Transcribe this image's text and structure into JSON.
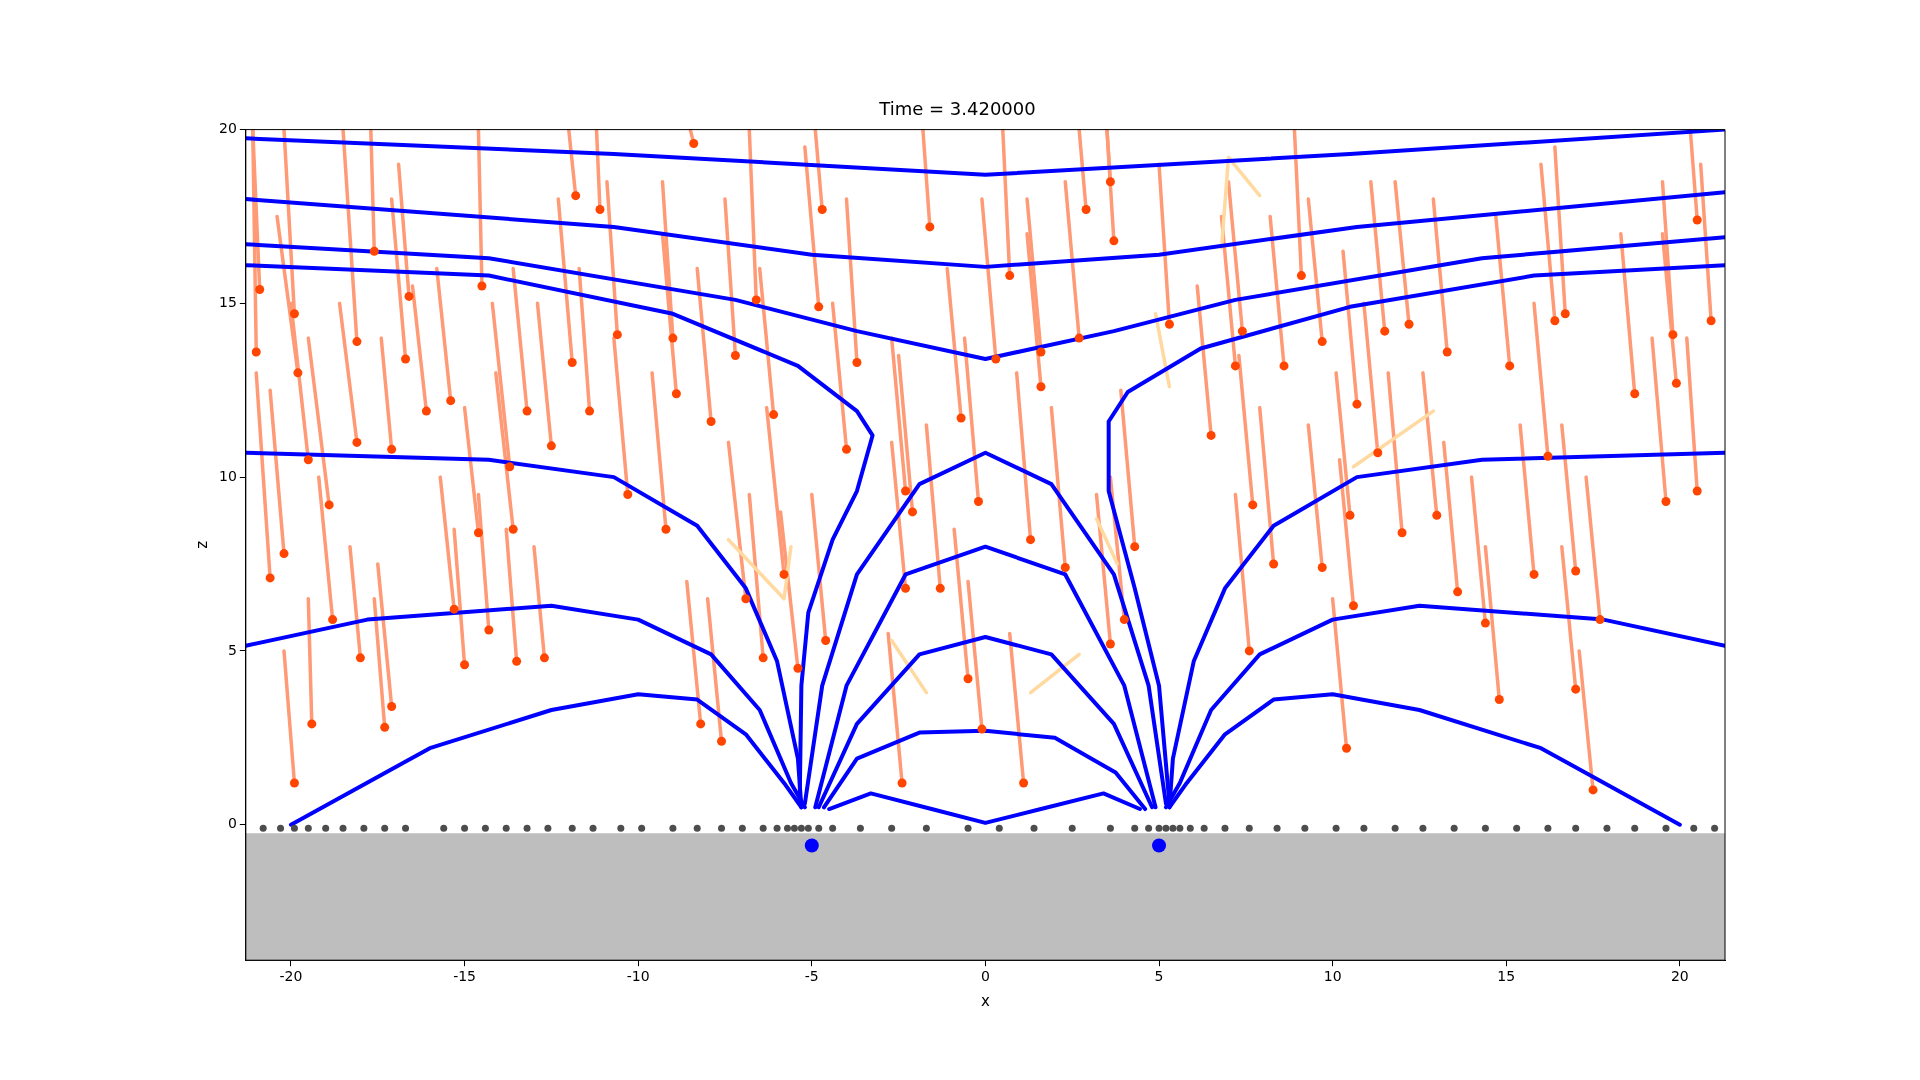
{
  "chart_data": {
    "type": "line",
    "title": "Time = 3.420000",
    "xlabel": "x",
    "ylabel": "z",
    "xlim": [
      -21.3,
      21.3
    ],
    "ylim": [
      -3.9,
      20
    ],
    "xticks": [
      -20,
      -15,
      -10,
      -5,
      0,
      5,
      10,
      15,
      20
    ],
    "yticks": [
      0,
      5,
      10,
      15,
      20
    ],
    "grid": false,
    "legend": false,
    "bands": [
      {
        "axis": "y",
        "from": -3.9,
        "to": -0.25,
        "color": "#bebebe"
      }
    ],
    "series": [
      {
        "color": "#ff9a76",
        "x": [
          -21.1,
          -21.0
        ],
        "values": [
          20,
          13.6
        ]
      },
      {
        "color": "#ff9a76",
        "x": [
          -21.1,
          -20.9
        ],
        "values": [
          20,
          15.4
        ]
      },
      {
        "color": "#ff9a76",
        "x": [
          -21.0,
          -20.6
        ],
        "values": [
          13,
          7.1
        ]
      },
      {
        "color": "#ff9a76",
        "x": [
          -20.6,
          -20.2
        ],
        "values": [
          12.5,
          7.8
        ]
      },
      {
        "color": "#ff9a76",
        "x": [
          -20.2,
          -19.9
        ],
        "values": [
          20,
          14.7
        ]
      },
      {
        "color": "#ff9a76",
        "x": [
          -20.4,
          -19.8
        ],
        "values": [
          17.5,
          13.0
        ]
      },
      {
        "color": "#ff9a76",
        "x": [
          -20.0,
          -19.5
        ],
        "values": [
          15,
          10.5
        ]
      },
      {
        "color": "#ff9a76",
        "x": [
          -19.5,
          -19.4
        ],
        "values": [
          6.5,
          2.9
        ]
      },
      {
        "color": "#ff9a76",
        "x": [
          -19.5,
          -18.9
        ],
        "values": [
          14,
          9.2
        ]
      },
      {
        "color": "#ff9a76",
        "x": [
          -19.2,
          -18.8
        ],
        "values": [
          10,
          5.9
        ]
      },
      {
        "color": "#ff9a76",
        "x": [
          -18.5,
          -18.1
        ],
        "values": [
          20,
          13.9
        ]
      },
      {
        "color": "#ff9a76",
        "x": [
          -17.7,
          -17.6
        ],
        "values": [
          20,
          16.5
        ]
      },
      {
        "color": "#ff9a76",
        "x": [
          -18.6,
          -18.1
        ],
        "values": [
          15,
          11.0
        ]
      },
      {
        "color": "#ff9a76",
        "x": [
          -18.3,
          -18.0
        ],
        "values": [
          8,
          4.8
        ]
      },
      {
        "color": "#ff9a76",
        "x": [
          -17.5,
          -17.1
        ],
        "values": [
          7.5,
          3.4
        ]
      },
      {
        "color": "#ff9a76",
        "x": [
          -17.4,
          -17.1
        ],
        "values": [
          14,
          10.8
        ]
      },
      {
        "color": "#ff9a76",
        "x": [
          -17.1,
          -16.7
        ],
        "values": [
          18,
          13.4
        ]
      },
      {
        "color": "#ff9a76",
        "x": [
          -16.9,
          -16.6
        ],
        "values": [
          19,
          15.2
        ]
      },
      {
        "color": "#ff9a76",
        "x": [
          -16.5,
          -16.1
        ],
        "values": [
          15.5,
          11.9
        ]
      },
      {
        "color": "#ff9a76",
        "x": [
          -15.8,
          -15.4
        ],
        "values": [
          16,
          12.2
        ]
      },
      {
        "color": "#ff9a76",
        "x": [
          -15.7,
          -15.3
        ],
        "values": [
          10,
          6.2
        ]
      },
      {
        "color": "#ff9a76",
        "x": [
          -15.3,
          -15.0
        ],
        "values": [
          8.5,
          4.6
        ]
      },
      {
        "color": "#ff9a76",
        "x": [
          -14.6,
          -14.5
        ],
        "values": [
          20,
          15.5
        ]
      },
      {
        "color": "#ff9a76",
        "x": [
          -15.0,
          -14.6
        ],
        "values": [
          12,
          8.4
        ]
      },
      {
        "color": "#ff9a76",
        "x": [
          -14.6,
          -14.3
        ],
        "values": [
          9.5,
          5.6
        ]
      },
      {
        "color": "#ff9a76",
        "x": [
          -14.1,
          -13.6
        ],
        "values": [
          13,
          8.5
        ]
      },
      {
        "color": "#ff9a76",
        "x": [
          -14.2,
          -13.7
        ],
        "values": [
          15,
          10.3
        ]
      },
      {
        "color": "#ff9a76",
        "x": [
          -13.8,
          -13.5
        ],
        "values": [
          8.5,
          4.7
        ]
      },
      {
        "color": "#ff9a76",
        "x": [
          -13.6,
          -13.2
        ],
        "values": [
          16,
          11.9
        ]
      },
      {
        "color": "#ff9a76",
        "x": [
          -13.0,
          -12.7
        ],
        "values": [
          8,
          4.8
        ]
      },
      {
        "color": "#ff9a76",
        "x": [
          -12.9,
          -12.5
        ],
        "values": [
          15,
          10.9
        ]
      },
      {
        "color": "#ff9a76",
        "x": [
          -12.3,
          -11.9
        ],
        "values": [
          18,
          13.3
        ]
      },
      {
        "color": "#ff9a76",
        "x": [
          -12.0,
          -11.8
        ],
        "values": [
          20,
          18.1
        ]
      },
      {
        "color": "#ff9a76",
        "x": [
          -11.7,
          -11.4
        ],
        "values": [
          16,
          11.9
        ]
      },
      {
        "color": "#ff9a76",
        "x": [
          -10.9,
          -10.6
        ],
        "values": [
          18.5,
          14.1
        ]
      },
      {
        "color": "#ff9a76",
        "x": [
          -11.2,
          -11.1
        ],
        "values": [
          20,
          17.7
        ]
      },
      {
        "color": "#ff9a76",
        "x": [
          -10.7,
          -10.3
        ],
        "values": [
          14,
          9.5
        ]
      },
      {
        "color": "#ff9a76",
        "x": [
          -9.6,
          -9.2
        ],
        "values": [
          13,
          8.5
        ]
      },
      {
        "color": "#ff9a76",
        "x": [
          -9.3,
          -9.0
        ],
        "values": [
          18.5,
          14.0
        ]
      },
      {
        "color": "#ff9a76",
        "x": [
          -9.3,
          -8.9
        ],
        "values": [
          17,
          12.4
        ]
      },
      {
        "color": "#ff9a76",
        "x": [
          -8.5,
          -8.4
        ],
        "values": [
          20,
          19.6
        ]
      },
      {
        "color": "#ff9a76",
        "x": [
          -8.3,
          -7.9
        ],
        "values": [
          16,
          11.6
        ]
      },
      {
        "color": "#ff9a76",
        "x": [
          -8.6,
          -8.2
        ],
        "values": [
          7,
          2.9
        ]
      },
      {
        "color": "#ff9a76",
        "x": [
          -7.5,
          -7.2
        ],
        "values": [
          18,
          13.5
        ]
      },
      {
        "color": "#ff9a76",
        "x": [
          -8.0,
          -7.6
        ],
        "values": [
          6.5,
          2.4
        ]
      },
      {
        "color": "#ff9a76",
        "x": [
          -7.4,
          -6.9
        ],
        "values": [
          11,
          6.5
        ]
      },
      {
        "color": "#ff9a76",
        "x": [
          -6.8,
          -6.6
        ],
        "values": [
          20,
          15.1
        ]
      },
      {
        "color": "#ff9a76",
        "x": [
          -6.5,
          -6.1
        ],
        "values": [
          16,
          11.8
        ]
      },
      {
        "color": "#ff9a76",
        "x": [
          -6.8,
          -6.4
        ],
        "values": [
          9.5,
          4.8
        ]
      },
      {
        "color": "#ff9a76",
        "x": [
          -6.3,
          -5.8
        ],
        "values": [
          12,
          7.2
        ]
      },
      {
        "color": "#ff9a76",
        "x": [
          -5.9,
          -5.4
        ],
        "values": [
          9,
          4.5
        ]
      },
      {
        "color": "#ff9a76",
        "x": [
          -5.2,
          -4.8
        ],
        "values": [
          19.5,
          14.9
        ]
      },
      {
        "color": "#ff9a76",
        "x": [
          -4.9,
          -4.7
        ],
        "values": [
          20,
          17.7
        ]
      },
      {
        "color": "#ff9a76",
        "x": [
          -5.0,
          -4.6
        ],
        "values": [
          9.5,
          5.3
        ]
      },
      {
        "color": "#ff9a76",
        "x": [
          -4.4,
          -4.0
        ],
        "values": [
          15,
          10.8
        ]
      },
      {
        "color": "#ff9a76",
        "x": [
          -4.0,
          -3.7
        ],
        "values": [
          18,
          13.3
        ]
      },
      {
        "color": "#ff9a76",
        "x": [
          -2.7,
          -2.3
        ],
        "values": [
          14,
          9.6
        ]
      },
      {
        "color": "#ff9a76",
        "x": [
          -2.7,
          -2.3
        ],
        "values": [
          11,
          6.8
        ]
      },
      {
        "color": "#ff9a76",
        "x": [
          -2.5,
          -2.1
        ],
        "values": [
          13.5,
          9.0
        ]
      },
      {
        "color": "#ff9a76",
        "x": [
          -1.8,
          -1.6
        ],
        "values": [
          20,
          17.2
        ]
      },
      {
        "color": "#ff9a76",
        "x": [
          -1.7,
          -1.3
        ],
        "values": [
          11.5,
          6.8
        ]
      },
      {
        "color": "#ff9a76",
        "x": [
          -1.1,
          -0.7
        ],
        "values": [
          16,
          11.7
        ]
      },
      {
        "color": "#ff9a76",
        "x": [
          -0.6,
          -0.2
        ],
        "values": [
          14,
          9.3
        ]
      },
      {
        "color": "#ff9a76",
        "x": [
          -0.9,
          -0.5
        ],
        "values": [
          8.5,
          4.2
        ]
      },
      {
        "color": "#ff9a76",
        "x": [
          -0.5,
          -0.1
        ],
        "values": [
          7,
          2.75
        ]
      },
      {
        "color": "#ff9a76",
        "x": [
          -0.1,
          0.3
        ],
        "values": [
          18,
          13.4
        ]
      },
      {
        "color": "#ff9a76",
        "x": [
          0.5,
          0.7
        ],
        "values": [
          20,
          15.8
        ]
      },
      {
        "color": "#ff9a76",
        "x": [
          1.2,
          1.6
        ],
        "values": [
          18,
          13.6
        ]
      },
      {
        "color": "#ff9a76",
        "x": [
          0.9,
          1.3
        ],
        "values": [
          13,
          8.2
        ]
      },
      {
        "color": "#ff9a76",
        "x": [
          1.2,
          1.6
        ],
        "values": [
          17,
          12.6
        ]
      },
      {
        "color": "#ff9a76",
        "x": [
          1.9,
          2.3
        ],
        "values": [
          12,
          7.4
        ]
      },
      {
        "color": "#ff9a76",
        "x": [
          2.3,
          2.7
        ],
        "values": [
          18.5,
          14.0
        ]
      },
      {
        "color": "#ff9a76",
        "x": [
          2.7,
          2.9
        ],
        "values": [
          20,
          17.7
        ]
      },
      {
        "color": "#ff9a76",
        "x": [
          3.2,
          3.6
        ],
        "values": [
          9.5,
          5.2
        ]
      },
      {
        "color": "#ff9a76",
        "x": [
          3.5,
          3.6
        ],
        "values": [
          20,
          18.5
        ]
      },
      {
        "color": "#ff9a76",
        "x": [
          3.5,
          3.7
        ],
        "values": [
          20,
          16.8
        ]
      },
      {
        "color": "#ff9a76",
        "x": [
          3.6,
          4.0
        ],
        "values": [
          10,
          5.9
        ]
      },
      {
        "color": "#ff9a76",
        "x": [
          3.9,
          4.3
        ],
        "values": [
          12.5,
          8.0
        ]
      },
      {
        "color": "#ff9a76",
        "x": [
          5.0,
          5.3
        ],
        "values": [
          19,
          14.4
        ]
      },
      {
        "color": "#ff9a76",
        "x": [
          6.1,
          6.5
        ],
        "values": [
          15.5,
          11.2
        ]
      },
      {
        "color": "#ff9a76",
        "x": [
          7.0,
          7.4
        ],
        "values": [
          18.5,
          14.2
        ]
      },
      {
        "color": "#ff9a76",
        "x": [
          6.8,
          7.2
        ],
        "values": [
          17.5,
          13.2
        ]
      },
      {
        "color": "#ff9a76",
        "x": [
          7.2,
          7.6
        ],
        "values": [
          9.5,
          5.0
        ]
      },
      {
        "color": "#ff9a76",
        "x": [
          7.3,
          7.7
        ],
        "values": [
          13.5,
          9.2
        ]
      },
      {
        "color": "#ff9a76",
        "x": [
          7.9,
          8.3
        ],
        "values": [
          12,
          7.5
        ]
      },
      {
        "color": "#ff9a76",
        "x": [
          8.2,
          8.6
        ],
        "values": [
          17.5,
          13.2
        ]
      },
      {
        "color": "#ff9a76",
        "x": [
          8.9,
          9.1
        ],
        "values": [
          20,
          15.8
        ]
      },
      {
        "color": "#ff9a76",
        "x": [
          9.3,
          9.7
        ],
        "values": [
          11.5,
          7.4
        ]
      },
      {
        "color": "#ff9a76",
        "x": [
          9.3,
          9.7
        ],
        "values": [
          18,
          13.9
        ]
      },
      {
        "color": "#ff9a76",
        "x": [
          10.0,
          10.4
        ],
        "values": [
          6.5,
          2.2
        ]
      },
      {
        "color": "#ff9a76",
        "x": [
          10.2,
          10.6
        ],
        "values": [
          10.5,
          6.3
        ]
      },
      {
        "color": "#ff9a76",
        "x": [
          10.1,
          10.5
        ],
        "values": [
          13,
          8.9
        ]
      },
      {
        "color": "#ff9a76",
        "x": [
          10.3,
          10.7
        ],
        "values": [
          16.5,
          12.1
        ]
      },
      {
        "color": "#ff9a76",
        "x": [
          10.9,
          11.3
        ],
        "values": [
          15,
          10.7
        ]
      },
      {
        "color": "#ff9a76",
        "x": [
          11.1,
          11.5
        ],
        "values": [
          18.5,
          14.2
        ]
      },
      {
        "color": "#ff9a76",
        "x": [
          11.6,
          12.0
        ],
        "values": [
          13,
          8.4
        ]
      },
      {
        "color": "#ff9a76",
        "x": [
          11.8,
          12.2
        ],
        "values": [
          18.5,
          14.4
        ]
      },
      {
        "color": "#ff9a76",
        "x": [
          12.6,
          13.0
        ],
        "values": [
          13,
          8.9
        ]
      },
      {
        "color": "#ff9a76",
        "x": [
          12.9,
          13.3
        ],
        "values": [
          18,
          13.6
        ]
      },
      {
        "color": "#ff9a76",
        "x": [
          13.2,
          13.6
        ],
        "values": [
          11,
          6.7
        ]
      },
      {
        "color": "#ff9a76",
        "x": [
          14.0,
          14.4
        ],
        "values": [
          10,
          5.8
        ]
      },
      {
        "color": "#ff9a76",
        "x": [
          14.4,
          14.8
        ],
        "values": [
          8,
          3.6
        ]
      },
      {
        "color": "#ff9a76",
        "x": [
          14.7,
          15.1
        ],
        "values": [
          17.5,
          13.2
        ]
      },
      {
        "color": "#ff9a76",
        "x": [
          15.4,
          15.8
        ],
        "values": [
          11.5,
          7.2
        ]
      },
      {
        "color": "#ff9a76",
        "x": [
          15.8,
          16.2
        ],
        "values": [
          15,
          10.6
        ]
      },
      {
        "color": "#ff9a76",
        "x": [
          16.0,
          16.4
        ],
        "values": [
          19,
          14.5
        ]
      },
      {
        "color": "#ff9a76",
        "x": [
          16.4,
          16.7
        ],
        "values": [
          19.5,
          14.7
        ]
      },
      {
        "color": "#ff9a76",
        "x": [
          16.6,
          17.0
        ],
        "values": [
          8,
          3.9
        ]
      },
      {
        "color": "#ff9a76",
        "x": [
          16.6,
          17.0
        ],
        "values": [
          11.5,
          7.3
        ]
      },
      {
        "color": "#ff9a76",
        "x": [
          17.3,
          17.7
        ],
        "values": [
          10,
          5.9
        ]
      },
      {
        "color": "#ff9a76",
        "x": [
          18.3,
          18.7
        ],
        "values": [
          17,
          12.4
        ]
      },
      {
        "color": "#ff9a76",
        "x": [
          19.2,
          19.6
        ],
        "values": [
          14,
          9.3
        ]
      },
      {
        "color": "#ff9a76",
        "x": [
          19.5,
          19.8
        ],
        "values": [
          18.5,
          14.1
        ]
      },
      {
        "color": "#ff9a76",
        "x": [
          19.5,
          19.9
        ],
        "values": [
          17,
          12.7
        ]
      },
      {
        "color": "#ff9a76",
        "x": [
          20.2,
          20.5
        ],
        "values": [
          14,
          9.6
        ]
      },
      {
        "color": "#ff9a76",
        "x": [
          20.6,
          20.9
        ],
        "values": [
          19,
          14.5
        ]
      },
      {
        "color": "#ff9a76",
        "x": [
          20.3,
          20.5
        ],
        "values": [
          20,
          17.4
        ]
      },
      {
        "color": "#ff9a76",
        "x": [
          17.1,
          17.5
        ],
        "values": [
          5,
          1.0
        ]
      },
      {
        "color": "#ff9a76",
        "x": [
          0.7,
          1.1
        ],
        "values": [
          5.5,
          1.2
        ]
      },
      {
        "color": "#ff9a76",
        "x": [
          -2.8,
          -2.4
        ],
        "values": [
          5.5,
          1.2
        ]
      },
      {
        "color": "#ff9a76",
        "x": [
          -20.2,
          -19.9
        ],
        "values": [
          5,
          1.2
        ]
      },
      {
        "color": "#ff9a76",
        "x": [
          -17.6,
          -17.3
        ],
        "values": [
          6.5,
          2.8
        ]
      },
      {
        "color": "#ffd9a0",
        "x": [
          -7.4,
          -5.8,
          -5.6
        ],
        "values": [
          8.2,
          6.5,
          8.0
        ]
      },
      {
        "color": "#ffd9a0",
        "x": [
          -2.7,
          -1.7
        ],
        "values": [
          5.3,
          3.8
        ]
      },
      {
        "color": "#ffd9a0",
        "x": [
          1.3,
          2.7
        ],
        "values": [
          3.8,
          4.9
        ]
      },
      {
        "color": "#ffd9a0",
        "x": [
          3.2,
          3.8
        ],
        "values": [
          8.8,
          7.5
        ]
      },
      {
        "color": "#ffd9a0",
        "x": [
          4.9,
          5.3
        ],
        "values": [
          14.7,
          12.6
        ]
      },
      {
        "color": "#ffd9a0",
        "x": [
          6.8,
          7.0,
          7.9
        ],
        "values": [
          16.6,
          19.2,
          18.1
        ]
      },
      {
        "color": "#ffd9a0",
        "x": [
          10.6,
          12.9
        ],
        "values": [
          10.3,
          11.9
        ]
      },
      {
        "color": "#0000ff",
        "x": [
          -21.3,
          -10.7,
          0,
          10.5,
          21.3
        ],
        "values": [
          19.75,
          19.3,
          18.7,
          19.3,
          20
        ]
      },
      {
        "color": "#0000ff",
        "x": [
          -21.3,
          -10.7,
          -5,
          0,
          5,
          10.7,
          21.3
        ],
        "values": [
          18.0,
          17.2,
          16.4,
          16.05,
          16.4,
          17.2,
          18.2
        ]
      },
      {
        "color": "#0000ff",
        "x": [
          -21.3,
          -14.3,
          -7.2,
          -3.7,
          0,
          3.7,
          7.2,
          14.3,
          21.3
        ],
        "values": [
          16.7,
          16.3,
          15.1,
          14.2,
          13.4,
          14.2,
          15.1,
          16.3,
          16.9
        ]
      },
      {
        "color": "#0000ff",
        "x": [
          -21.3,
          -14.3,
          -9.0,
          -5.4,
          -3.7,
          -3.25,
          -3.7,
          -4.4,
          -5.1,
          -5.3,
          -5.35
        ],
        "values": [
          16.1,
          15.8,
          14.7,
          13.2,
          11.9,
          11.2,
          9.6,
          8.2,
          6.1,
          4.0,
          0.6
        ]
      },
      {
        "color": "#0000ff",
        "x": [
          5.3,
          5.0,
          4.3,
          3.55,
          3.55,
          4.1,
          6.2,
          10.5,
          15.8,
          21.3
        ],
        "values": [
          0.6,
          4.0,
          6.8,
          9.6,
          11.6,
          12.45,
          13.7,
          14.9,
          15.8,
          16.1
        ]
      },
      {
        "color": "#0000ff",
        "x": [
          -21.3,
          -14.3,
          -10.7,
          -8.3,
          -6.9,
          -6.0,
          -5.4,
          -5.3
        ],
        "values": [
          10.7,
          10.5,
          10.0,
          8.6,
          6.8,
          4.7,
          1.9,
          0.5
        ]
      },
      {
        "color": "#0000ff",
        "x": [
          5.3,
          5.4,
          6.0,
          6.9,
          8.3,
          10.7,
          14.3,
          21.3
        ],
        "values": [
          0.5,
          1.9,
          4.7,
          6.8,
          8.6,
          10.0,
          10.5,
          10.7
        ]
      },
      {
        "color": "#0000ff",
        "x": [
          -21.3,
          -17.8,
          -12.5,
          -10.0,
          -7.9,
          -6.5,
          -5.6,
          -5.2
        ],
        "values": [
          5.15,
          5.9,
          6.3,
          5.9,
          4.9,
          3.3,
          1.2,
          0.5
        ]
      },
      {
        "color": "#0000ff",
        "x": [
          5.2,
          5.6,
          6.5,
          7.9,
          10.0,
          12.5,
          17.8,
          21.3
        ],
        "values": [
          0.5,
          1.2,
          3.3,
          4.9,
          5.9,
          6.3,
          5.9,
          5.15
        ]
      },
      {
        "color": "#0000ff",
        "x": [
          -20,
          -16.0,
          -12.5,
          -10.0,
          -8.3,
          -6.9,
          -5.8,
          -5.3
        ],
        "values": [
          0,
          2.2,
          3.3,
          3.75,
          3.6,
          2.6,
          1.2,
          0.5
        ]
      },
      {
        "color": "#0000ff",
        "x": [
          5.3,
          5.8,
          6.9,
          8.3,
          10.0,
          12.5,
          16.0,
          20
        ],
        "values": [
          0.5,
          1.2,
          2.6,
          3.6,
          3.75,
          3.3,
          2.2,
          0
        ]
      },
      {
        "color": "#0000ff",
        "x": [
          -5.2,
          -4.7,
          -3.7,
          -1.9,
          0,
          1.9,
          3.7,
          4.7,
          5.2
        ],
        "values": [
          0.6,
          4.0,
          7.2,
          9.8,
          10.7,
          9.8,
          7.2,
          4.0,
          0.6
        ]
      },
      {
        "color": "#0000ff",
        "x": [
          -4.9,
          -4.0,
          -2.3,
          0,
          2.3,
          4.0,
          4.9
        ],
        "values": [
          0.5,
          4.0,
          7.2,
          8.0,
          7.2,
          4.0,
          0.5
        ]
      },
      {
        "color": "#0000ff",
        "x": [
          -4.8,
          -3.7,
          -1.9,
          0,
          1.9,
          3.7,
          4.8
        ],
        "values": [
          0.5,
          2.9,
          4.9,
          5.4,
          4.9,
          2.9,
          0.5
        ]
      },
      {
        "color": "#0000ff",
        "x": [
          -4.65,
          -3.7,
          -1.9,
          0,
          2.0,
          3.75,
          4.6
        ],
        "values": [
          0.5,
          1.9,
          2.65,
          2.7,
          2.5,
          1.5,
          0.45
        ]
      },
      {
        "color": "#0000ff",
        "x": [
          -4.5,
          -3.3,
          -1.55,
          0,
          1.6,
          3.4,
          4.45
        ],
        "values": [
          0.45,
          0.9,
          0.45,
          0.05,
          0.45,
          0.9,
          0.45
        ]
      },
      {
        "type": "scatter",
        "color": "#ff4500",
        "x": [
          -21.0,
          -20.9,
          -20.6,
          -20.2,
          -19.9,
          -19.8,
          -19.5,
          -19.4,
          -18.9,
          -18.8,
          -18.1,
          -17.6,
          -18.1,
          -18.0,
          -17.1,
          -17.1,
          -16.7,
          -16.6,
          -16.1,
          -15.4,
          -15.3,
          -15.0,
          -14.5,
          -14.6,
          -14.3,
          -13.6,
          -13.7,
          -13.5,
          -13.2,
          -12.7,
          -12.5,
          -11.9,
          -11.8,
          -11.4,
          -10.6,
          -11.1,
          -10.3,
          -9.2,
          -9.0,
          -8.9,
          -8.4,
          -7.9,
          -8.2,
          -7.2,
          -7.6,
          -6.9,
          -6.6,
          -6.1,
          -6.4,
          -5.8,
          -5.4,
          -4.8,
          -4.7,
          -4.6,
          -4.0,
          -3.7,
          -2.3,
          -2.3,
          -2.1,
          -1.6,
          -1.3,
          -0.7,
          -0.2,
          -0.5,
          -0.1,
          0.3,
          0.7,
          1.6,
          1.3,
          1.6,
          2.3,
          2.7,
          2.9,
          3.6,
          3.6,
          3.7,
          4.0,
          4.3,
          5.3,
          6.5,
          7.4,
          7.2,
          7.6,
          7.7,
          8.3,
          8.6,
          9.1,
          9.7,
          9.7,
          10.4,
          10.6,
          10.5,
          10.7,
          11.3,
          11.5,
          12.0,
          12.2,
          13.0,
          13.3,
          13.6,
          14.4,
          14.8,
          15.1,
          15.8,
          16.2,
          16.4,
          16.7,
          17.0,
          17.0,
          17.7,
          18.7,
          19.6,
          19.8,
          19.9,
          20.5,
          20.9,
          20.5,
          17.5,
          1.1,
          -2.4,
          -19.9,
          -17.3
        ],
        "values": [
          13.6,
          15.4,
          7.1,
          7.8,
          14.7,
          13.0,
          10.5,
          2.9,
          9.2,
          5.9,
          13.9,
          16.5,
          11.0,
          4.8,
          3.4,
          10.8,
          13.4,
          15.2,
          11.9,
          12.2,
          6.2,
          4.6,
          15.5,
          8.4,
          5.6,
          8.5,
          10.3,
          4.7,
          11.9,
          4.8,
          10.9,
          13.3,
          18.1,
          11.9,
          14.1,
          17.7,
          9.5,
          8.5,
          14.0,
          12.4,
          19.6,
          11.6,
          2.9,
          13.5,
          2.4,
          6.5,
          15.1,
          11.8,
          4.8,
          7.2,
          4.5,
          14.9,
          17.7,
          5.3,
          10.8,
          13.3,
          9.6,
          6.8,
          9.0,
          17.2,
          6.8,
          11.7,
          9.3,
          4.2,
          2.75,
          13.4,
          15.8,
          13.6,
          8.2,
          12.6,
          7.4,
          14.0,
          17.7,
          5.2,
          18.5,
          16.8,
          5.9,
          8.0,
          14.4,
          11.2,
          14.2,
          13.2,
          5.0,
          9.2,
          7.5,
          13.2,
          15.8,
          7.4,
          13.9,
          2.2,
          6.3,
          8.9,
          12.1,
          10.7,
          14.2,
          8.4,
          14.4,
          8.9,
          13.6,
          6.7,
          5.8,
          3.6,
          13.2,
          7.2,
          10.6,
          14.5,
          14.7,
          3.9,
          7.3,
          5.9,
          12.4,
          9.3,
          14.1,
          12.7,
          9.6,
          14.5,
          17.4,
          1.0,
          1.2,
          1.2,
          1.2,
          2.8
        ]
      },
      {
        "type": "scatter",
        "color": "#4d4d4d",
        "x": [
          -20.8,
          -20.3,
          -19.9,
          -19.5,
          -19.0,
          -18.5,
          -17.9,
          -17.3,
          -16.7,
          -15.6,
          -15.0,
          -14.4,
          -13.8,
          -13.2,
          -12.6,
          -11.9,
          -11.3,
          -10.5,
          -9.9,
          -9.0,
          -8.3,
          -7.6,
          -7.0,
          -6.4,
          -6.0,
          -5.7,
          -5.5,
          -5.3,
          -5.1,
          -4.8,
          -4.4,
          -3.6,
          -2.7,
          -1.7,
          -0.5,
          0.4,
          1.4,
          2.5,
          3.6,
          4.3,
          4.7,
          5.0,
          5.2,
          5.4,
          5.6,
          5.9,
          6.3,
          6.9,
          7.6,
          8.4,
          9.2,
          10.1,
          10.9,
          11.8,
          12.6,
          13.5,
          14.4,
          15.3,
          16.2,
          17.0,
          17.9,
          18.7,
          19.6,
          20.4,
          21.0
        ],
        "values": [
          -0.1,
          -0.1,
          -0.1,
          -0.1,
          -0.1,
          -0.1,
          -0.1,
          -0.1,
          -0.1,
          -0.1,
          -0.1,
          -0.1,
          -0.1,
          -0.1,
          -0.1,
          -0.1,
          -0.1,
          -0.1,
          -0.1,
          -0.1,
          -0.1,
          -0.1,
          -0.1,
          -0.1,
          -0.1,
          -0.1,
          -0.1,
          -0.1,
          -0.1,
          -0.1,
          -0.1,
          -0.1,
          -0.1,
          -0.1,
          -0.1,
          -0.1,
          -0.1,
          -0.1,
          -0.1,
          -0.1,
          -0.1,
          -0.1,
          -0.1,
          -0.1,
          -0.1,
          -0.1,
          -0.1,
          -0.1,
          -0.1,
          -0.1,
          -0.1,
          -0.1,
          -0.1,
          -0.1,
          -0.1,
          -0.1,
          -0.1,
          -0.1,
          -0.1,
          -0.1,
          -0.1,
          -0.1,
          -0.1,
          -0.1,
          -0.1
        ]
      },
      {
        "type": "scatter",
        "color": "#0000ff",
        "x": [
          -5,
          5
        ],
        "values": [
          -0.6,
          -0.6
        ]
      }
    ]
  }
}
